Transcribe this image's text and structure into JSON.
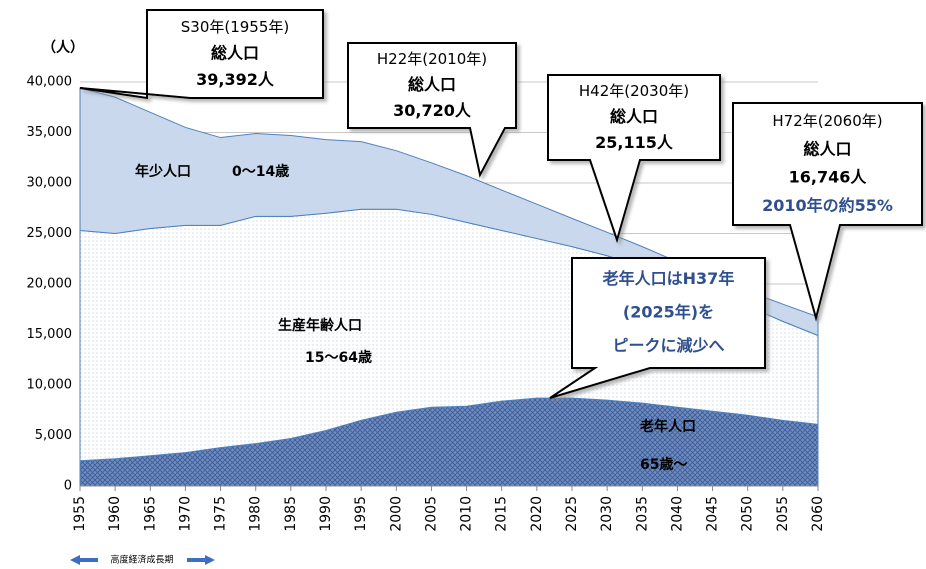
{
  "chart_data": {
    "type": "stacked_area",
    "y_label": "（人）",
    "x": [
      1955,
      1960,
      1965,
      1970,
      1975,
      1980,
      1985,
      1990,
      1995,
      2000,
      2005,
      2010,
      2015,
      2020,
      2025,
      2030,
      2035,
      2040,
      2045,
      2050,
      2055,
      2060
    ],
    "xlim": [
      1955,
      2060
    ],
    "ylim": [
      0,
      40000
    ],
    "yticks": [
      0,
      {
        "value": 5000,
        "label": "5,000"
      },
      {
        "value": 10000,
        "label": "10,000"
      },
      {
        "value": 15000,
        "label": "15,000"
      },
      {
        "value": 20000,
        "label": "20,000"
      },
      {
        "value": 25000,
        "label": "25,000"
      },
      {
        "value": 30000,
        "label": "30,000"
      },
      {
        "value": 35000,
        "label": "35,000"
      },
      {
        "value": 40000,
        "label": "40,000"
      }
    ],
    "grid": true,
    "series": [
      {
        "name": "老年人口",
        "age_range": "65歳〜",
        "color": "#4f6fa8",
        "values": [
          2500,
          2700,
          3000,
          3300,
          3800,
          4200,
          4700,
          5500,
          6500,
          7300,
          7800,
          7900,
          8400,
          8700,
          8700,
          8500,
          8200,
          7800,
          7400,
          7000,
          6500,
          6100
        ]
      },
      {
        "name": "生産年齢人口",
        "age_range": "15〜64歳",
        "color": "#9fb8dc",
        "values": [
          22800,
          22300,
          22500,
          22500,
          22000,
          22500,
          22000,
          21500,
          20900,
          20100,
          19100,
          18200,
          16900,
          15800,
          15000,
          14300,
          13500,
          12700,
          11800,
          10800,
          9800,
          8800
        ]
      },
      {
        "name": "年少人口",
        "age_range": "0〜14歳",
        "color": "#c9d8ec",
        "values": [
          14092,
          13500,
          11500,
          9700,
          8700,
          8200,
          8000,
          7300,
          6700,
          5800,
          5100,
          4620,
          4000,
          3400,
          2800,
          2315,
          2000,
          1700,
          1500,
          1500,
          1700,
          1846
        ]
      }
    ],
    "annotations": [
      {
        "lines": [
          "S30年(1955年)",
          "総人口",
          "39,392人"
        ]
      },
      {
        "lines": [
          "H22年(2010年)",
          "総人口",
          "30,720人"
        ]
      },
      {
        "lines": [
          "H42年(2030年)",
          "総人口",
          "25,115人"
        ]
      },
      {
        "lines": [
          "H72年(2060年)",
          "総人口",
          "16,746人",
          "2010年の約55%"
        ]
      },
      {
        "lines": [
          "老年人口はH37年",
          "(2025年)を",
          "ピークに減少へ"
        ]
      }
    ],
    "period_note": "高度経済成長期"
  }
}
